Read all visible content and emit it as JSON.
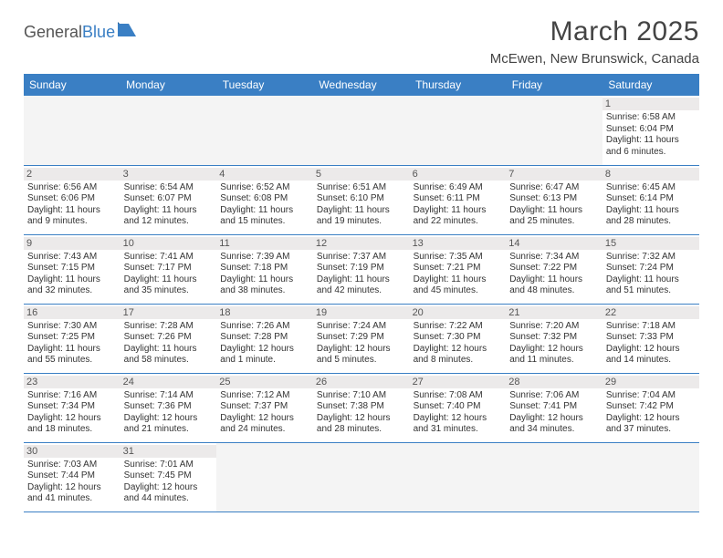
{
  "brand": {
    "part1": "General",
    "part2": "Blue"
  },
  "title": "March 2025",
  "location": "McEwen, New Brunswick, Canada",
  "colors": {
    "header_bg": "#3a7fc4",
    "header_text": "#ffffff",
    "border": "#3a7fc4",
    "daynum_bg": "#eceaea",
    "text": "#333333",
    "page_bg": "#ffffff"
  },
  "weekdays": [
    "Sunday",
    "Monday",
    "Tuesday",
    "Wednesday",
    "Thursday",
    "Friday",
    "Saturday"
  ],
  "weeks": [
    [
      null,
      null,
      null,
      null,
      null,
      null,
      {
        "n": "1",
        "sunrise": "6:58 AM",
        "sunset": "6:04 PM",
        "daylight": "11 hours and 6 minutes."
      }
    ],
    [
      {
        "n": "2",
        "sunrise": "6:56 AM",
        "sunset": "6:06 PM",
        "daylight": "11 hours and 9 minutes."
      },
      {
        "n": "3",
        "sunrise": "6:54 AM",
        "sunset": "6:07 PM",
        "daylight": "11 hours and 12 minutes."
      },
      {
        "n": "4",
        "sunrise": "6:52 AM",
        "sunset": "6:08 PM",
        "daylight": "11 hours and 15 minutes."
      },
      {
        "n": "5",
        "sunrise": "6:51 AM",
        "sunset": "6:10 PM",
        "daylight": "11 hours and 19 minutes."
      },
      {
        "n": "6",
        "sunrise": "6:49 AM",
        "sunset": "6:11 PM",
        "daylight": "11 hours and 22 minutes."
      },
      {
        "n": "7",
        "sunrise": "6:47 AM",
        "sunset": "6:13 PM",
        "daylight": "11 hours and 25 minutes."
      },
      {
        "n": "8",
        "sunrise": "6:45 AM",
        "sunset": "6:14 PM",
        "daylight": "11 hours and 28 minutes."
      }
    ],
    [
      {
        "n": "9",
        "sunrise": "7:43 AM",
        "sunset": "7:15 PM",
        "daylight": "11 hours and 32 minutes."
      },
      {
        "n": "10",
        "sunrise": "7:41 AM",
        "sunset": "7:17 PM",
        "daylight": "11 hours and 35 minutes."
      },
      {
        "n": "11",
        "sunrise": "7:39 AM",
        "sunset": "7:18 PM",
        "daylight": "11 hours and 38 minutes."
      },
      {
        "n": "12",
        "sunrise": "7:37 AM",
        "sunset": "7:19 PM",
        "daylight": "11 hours and 42 minutes."
      },
      {
        "n": "13",
        "sunrise": "7:35 AM",
        "sunset": "7:21 PM",
        "daylight": "11 hours and 45 minutes."
      },
      {
        "n": "14",
        "sunrise": "7:34 AM",
        "sunset": "7:22 PM",
        "daylight": "11 hours and 48 minutes."
      },
      {
        "n": "15",
        "sunrise": "7:32 AM",
        "sunset": "7:24 PM",
        "daylight": "11 hours and 51 minutes."
      }
    ],
    [
      {
        "n": "16",
        "sunrise": "7:30 AM",
        "sunset": "7:25 PM",
        "daylight": "11 hours and 55 minutes."
      },
      {
        "n": "17",
        "sunrise": "7:28 AM",
        "sunset": "7:26 PM",
        "daylight": "11 hours and 58 minutes."
      },
      {
        "n": "18",
        "sunrise": "7:26 AM",
        "sunset": "7:28 PM",
        "daylight": "12 hours and 1 minute."
      },
      {
        "n": "19",
        "sunrise": "7:24 AM",
        "sunset": "7:29 PM",
        "daylight": "12 hours and 5 minutes."
      },
      {
        "n": "20",
        "sunrise": "7:22 AM",
        "sunset": "7:30 PM",
        "daylight": "12 hours and 8 minutes."
      },
      {
        "n": "21",
        "sunrise": "7:20 AM",
        "sunset": "7:32 PM",
        "daylight": "12 hours and 11 minutes."
      },
      {
        "n": "22",
        "sunrise": "7:18 AM",
        "sunset": "7:33 PM",
        "daylight": "12 hours and 14 minutes."
      }
    ],
    [
      {
        "n": "23",
        "sunrise": "7:16 AM",
        "sunset": "7:34 PM",
        "daylight": "12 hours and 18 minutes."
      },
      {
        "n": "24",
        "sunrise": "7:14 AM",
        "sunset": "7:36 PM",
        "daylight": "12 hours and 21 minutes."
      },
      {
        "n": "25",
        "sunrise": "7:12 AM",
        "sunset": "7:37 PM",
        "daylight": "12 hours and 24 minutes."
      },
      {
        "n": "26",
        "sunrise": "7:10 AM",
        "sunset": "7:38 PM",
        "daylight": "12 hours and 28 minutes."
      },
      {
        "n": "27",
        "sunrise": "7:08 AM",
        "sunset": "7:40 PM",
        "daylight": "12 hours and 31 minutes."
      },
      {
        "n": "28",
        "sunrise": "7:06 AM",
        "sunset": "7:41 PM",
        "daylight": "12 hours and 34 minutes."
      },
      {
        "n": "29",
        "sunrise": "7:04 AM",
        "sunset": "7:42 PM",
        "daylight": "12 hours and 37 minutes."
      }
    ],
    [
      {
        "n": "30",
        "sunrise": "7:03 AM",
        "sunset": "7:44 PM",
        "daylight": "12 hours and 41 minutes."
      },
      {
        "n": "31",
        "sunrise": "7:01 AM",
        "sunset": "7:45 PM",
        "daylight": "12 hours and 44 minutes."
      },
      null,
      null,
      null,
      null,
      null
    ]
  ],
  "labels": {
    "sunrise": "Sunrise:",
    "sunset": "Sunset:",
    "daylight": "Daylight:"
  }
}
